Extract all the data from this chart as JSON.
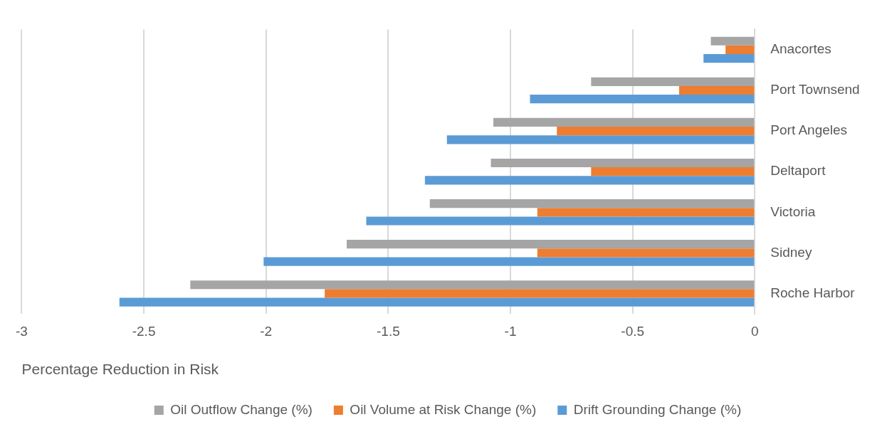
{
  "chart_data": {
    "type": "bar",
    "orientation": "horizontal",
    "xlabel": "Percentage Reduction in Risk",
    "categories": [
      "Anacortes",
      "Port Townsend",
      "Port Angeles",
      "Deltaport",
      "Victoria",
      "Sidney",
      "Roche Harbor"
    ],
    "series": [
      {
        "name": "Oil Outflow Change (%)",
        "color": "#a5a5a5",
        "values": [
          -0.18,
          -0.67,
          -1.07,
          -1.08,
          -1.33,
          -1.67,
          -2.31
        ]
      },
      {
        "name": "Oil Volume at Risk Change (%)",
        "color": "#ed7d31",
        "values": [
          -0.12,
          -0.31,
          -0.81,
          -0.67,
          -0.89,
          -0.89,
          -1.76
        ]
      },
      {
        "name": "Drift Grounding Change (%)",
        "color": "#5b9bd5",
        "values": [
          -0.21,
          -0.92,
          -1.26,
          -1.35,
          -1.59,
          -2.01,
          -2.6
        ]
      }
    ],
    "xlim": [
      -3,
      0
    ],
    "xticks": [
      -3,
      -2.5,
      -2,
      -1.5,
      -1,
      -0.5,
      0
    ],
    "grid": "x",
    "legend": "bottom"
  }
}
